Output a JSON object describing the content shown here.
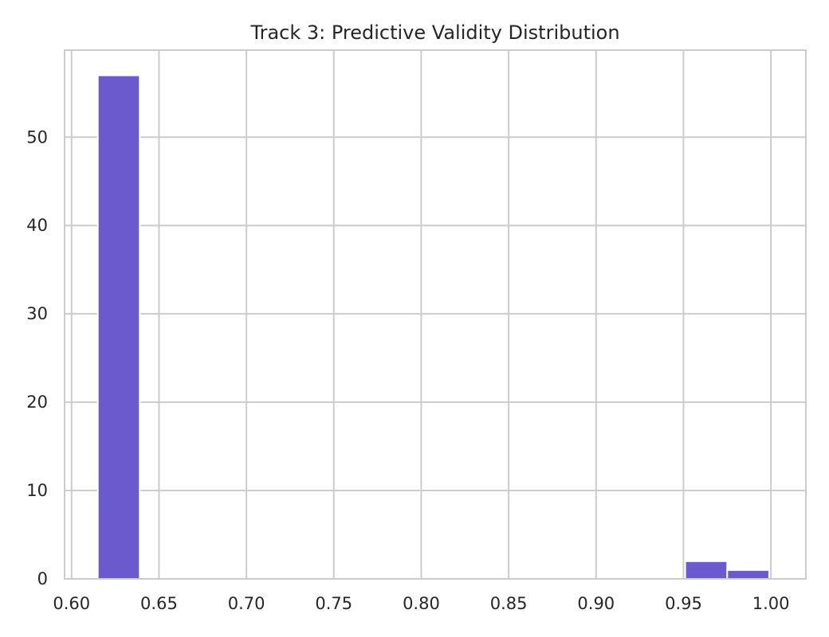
{
  "chart_data": {
    "type": "bar",
    "title": "Track 3: Predictive Validity Distribution",
    "xlabel": "",
    "ylabel": "",
    "xlim": [
      0.596,
      1.02
    ],
    "ylim": [
      0,
      59.85
    ],
    "grid": true,
    "bar_color": "#6a5acd",
    "bins": [
      {
        "x0": 0.615,
        "x1": 0.639,
        "count": 57
      },
      {
        "x0": 0.639,
        "x1": 0.663,
        "count": 0
      },
      {
        "x0": 0.663,
        "x1": 0.687,
        "count": 0
      },
      {
        "x0": 0.687,
        "x1": 0.711,
        "count": 0
      },
      {
        "x0": 0.711,
        "x1": 0.735,
        "count": 0
      },
      {
        "x0": 0.735,
        "x1": 0.759,
        "count": 0
      },
      {
        "x0": 0.759,
        "x1": 0.783,
        "count": 0
      },
      {
        "x0": 0.783,
        "x1": 0.807,
        "count": 0
      },
      {
        "x0": 0.807,
        "x1": 0.831,
        "count": 0
      },
      {
        "x0": 0.831,
        "x1": 0.855,
        "count": 0
      },
      {
        "x0": 0.855,
        "x1": 0.879,
        "count": 0
      },
      {
        "x0": 0.879,
        "x1": 0.903,
        "count": 0
      },
      {
        "x0": 0.903,
        "x1": 0.927,
        "count": 0
      },
      {
        "x0": 0.927,
        "x1": 0.951,
        "count": 0
      },
      {
        "x0": 0.951,
        "x1": 0.975,
        "count": 2
      },
      {
        "x0": 0.975,
        "x1": 0.999,
        "count": 1
      }
    ],
    "x_ticks": [
      {
        "value": 0.6,
        "label": "0.60"
      },
      {
        "value": 0.65,
        "label": "0.65"
      },
      {
        "value": 0.7,
        "label": "0.70"
      },
      {
        "value": 0.75,
        "label": "0.75"
      },
      {
        "value": 0.8,
        "label": "0.80"
      },
      {
        "value": 0.85,
        "label": "0.85"
      },
      {
        "value": 0.9,
        "label": "0.90"
      },
      {
        "value": 0.95,
        "label": "0.95"
      },
      {
        "value": 1.0,
        "label": "1.00"
      }
    ],
    "y_ticks": [
      {
        "value": 0,
        "label": "0"
      },
      {
        "value": 10,
        "label": "10"
      },
      {
        "value": 20,
        "label": "20"
      },
      {
        "value": 30,
        "label": "30"
      },
      {
        "value": 40,
        "label": "40"
      },
      {
        "value": 50,
        "label": "50"
      }
    ]
  }
}
